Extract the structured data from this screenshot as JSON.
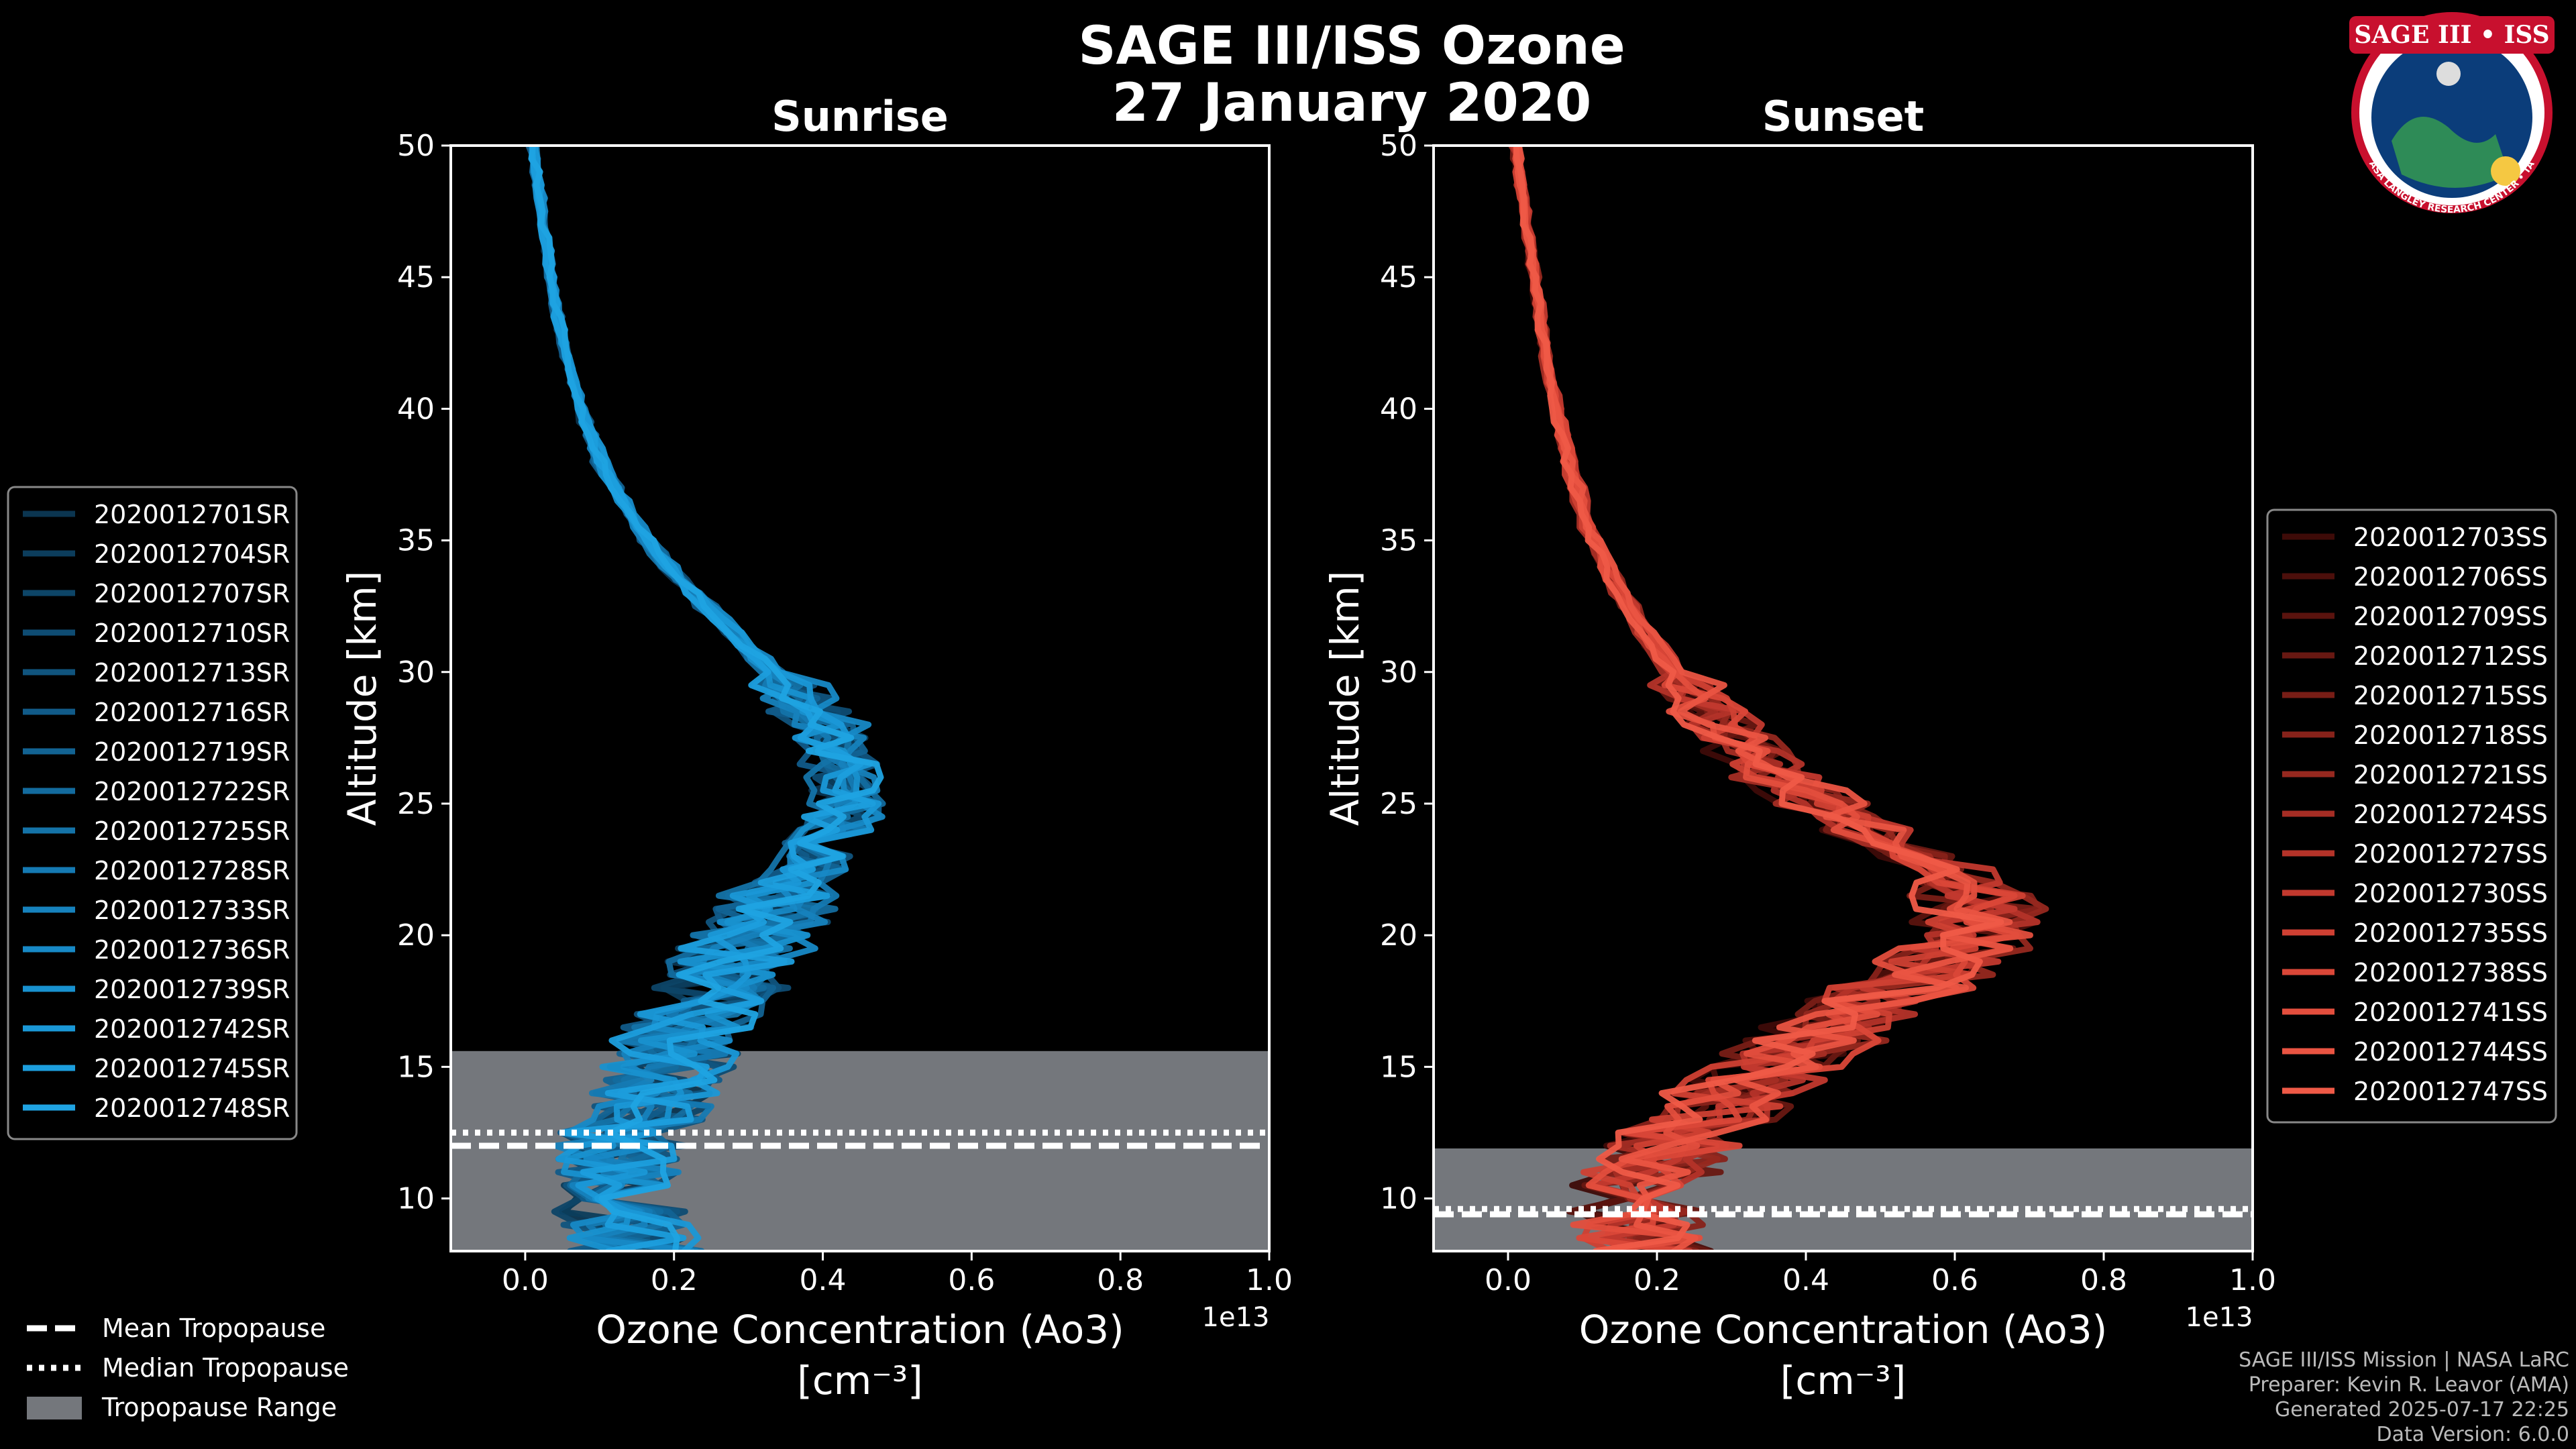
{
  "title": "SAGE III/ISS Ozone",
  "date": "27 January 2020",
  "logo": {
    "text": "SAGE III • ISS",
    "ring_text": "BALL • NASA LANGLEY RESEARCH CENTER • TAS-I • ESA",
    "colors": {
      "ring": "#c8102e",
      "inner": "#0b3d7a"
    }
  },
  "colors": {
    "sunrise": "#1e9fdc",
    "sunset": "#ef5a47",
    "tropopause_band": "#74777c",
    "background": "#000000"
  },
  "chart_data": [
    {
      "type": "line",
      "title": "Sunrise",
      "xlabel": "Ozone Concentration (Ao3)",
      "xunit": "[cm⁻³]",
      "ylabel": "Altitude [km]",
      "xlim": [
        -0.1,
        1.0
      ],
      "ylim": [
        8,
        50
      ],
      "x_ticks": [
        "0.0",
        "0.2",
        "0.4",
        "0.6",
        "0.8",
        "1.0"
      ],
      "y_ticks": [
        "10",
        "15",
        "20",
        "25",
        "30",
        "35",
        "40",
        "45",
        "50"
      ],
      "x_scale_label": "1e13",
      "tropopause": {
        "mean": 12.0,
        "median": 12.5,
        "range": [
          8,
          15.6
        ]
      },
      "base_profile": {
        "altitude": [
          8,
          10,
          12,
          14,
          16,
          18,
          20,
          22,
          24,
          25,
          26,
          27,
          28,
          30,
          32,
          34,
          36,
          38,
          40,
          42,
          44,
          46,
          48,
          50
        ],
        "ozone": [
          0.15,
          0.12,
          0.13,
          0.17,
          0.21,
          0.26,
          0.3,
          0.36,
          0.42,
          0.44,
          0.43,
          0.42,
          0.4,
          0.33,
          0.26,
          0.19,
          0.14,
          0.1,
          0.075,
          0.055,
          0.04,
          0.03,
          0.02,
          0.01
        ]
      },
      "series": [
        {
          "name": "2020012701SR",
          "shift": -0.02,
          "color": "#0b3550"
        },
        {
          "name": "2020012704SR",
          "shift": 0.01,
          "color": "#0c3d5c"
        },
        {
          "name": "2020012707SR",
          "shift": -0.01,
          "color": "#0d4567"
        },
        {
          "name": "2020012710SR",
          "shift": 0.02,
          "color": "#0e4c73"
        },
        {
          "name": "2020012713SR",
          "shift": 0.0,
          "color": "#10547e"
        },
        {
          "name": "2020012716SR",
          "shift": -0.03,
          "color": "#115b89"
        },
        {
          "name": "2020012719SR",
          "shift": 0.03,
          "color": "#126393"
        },
        {
          "name": "2020012722SR",
          "shift": 0.01,
          "color": "#136b9e"
        },
        {
          "name": "2020012725SR",
          "shift": -0.02,
          "color": "#1473a8"
        },
        {
          "name": "2020012728SR",
          "shift": 0.02,
          "color": "#157ab3"
        },
        {
          "name": "2020012733SR",
          "shift": 0.0,
          "color": "#1682bd"
        },
        {
          "name": "2020012736SR",
          "shift": 0.04,
          "color": "#1789c6"
        },
        {
          "name": "2020012739SR",
          "shift": -0.01,
          "color": "#1891cf"
        },
        {
          "name": "2020012742SR",
          "shift": 0.03,
          "color": "#1a98d7"
        },
        {
          "name": "2020012745SR",
          "shift": -0.02,
          "color": "#1c9edd"
        },
        {
          "name": "2020012748SR",
          "shift": 0.01,
          "color": "#1fa3e2"
        }
      ]
    },
    {
      "type": "line",
      "title": "Sunset",
      "xlabel": "Ozone Concentration (Ao3)",
      "xunit": "[cm⁻³]",
      "ylabel": "Altitude [km]",
      "xlim": [
        -0.1,
        1.0
      ],
      "ylim": [
        8,
        50
      ],
      "x_ticks": [
        "0.0",
        "0.2",
        "0.4",
        "0.6",
        "0.8",
        "1.0"
      ],
      "y_ticks": [
        "10",
        "15",
        "20",
        "25",
        "30",
        "35",
        "40",
        "45",
        "50"
      ],
      "x_scale_label": "1e13",
      "tropopause": {
        "mean": 9.4,
        "median": 9.6,
        "range": [
          8,
          11.9
        ]
      },
      "base_profile": {
        "altitude": [
          8,
          9,
          10,
          12,
          14,
          16,
          18,
          20,
          21,
          22,
          24,
          26,
          28,
          30,
          32,
          34,
          36,
          38,
          40,
          42,
          44,
          46,
          48,
          50
        ],
        "ozone": [
          0.18,
          0.17,
          0.16,
          0.22,
          0.3,
          0.4,
          0.52,
          0.62,
          0.64,
          0.6,
          0.48,
          0.36,
          0.28,
          0.22,
          0.17,
          0.13,
          0.1,
          0.08,
          0.065,
          0.05,
          0.04,
          0.03,
          0.02,
          0.01
        ]
      },
      "series": [
        {
          "name": "2020012703SS",
          "shift": -0.03,
          "color": "#3e0b08"
        },
        {
          "name": "2020012706SS",
          "shift": 0.02,
          "color": "#4c0f0b"
        },
        {
          "name": "2020012709SS",
          "shift": 0.0,
          "color": "#5a130e"
        },
        {
          "name": "2020012712SS",
          "shift": 0.04,
          "color": "#681812"
        },
        {
          "name": "2020012715SS",
          "shift": -0.02,
          "color": "#781d16"
        },
        {
          "name": "2020012718SS",
          "shift": 0.01,
          "color": "#87221a"
        },
        {
          "name": "2020012721SS",
          "shift": 0.05,
          "color": "#96281f"
        },
        {
          "name": "2020012724SS",
          "shift": -0.04,
          "color": "#a52d24"
        },
        {
          "name": "2020012727SS",
          "shift": 0.02,
          "color": "#b43329"
        },
        {
          "name": "2020012730SS",
          "shift": 0.06,
          "color": "#c2392e"
        },
        {
          "name": "2020012735SS",
          "shift": -0.01,
          "color": "#cf4033"
        },
        {
          "name": "2020012738SS",
          "shift": 0.03,
          "color": "#da4738"
        },
        {
          "name": "2020012741SS",
          "shift": 0.0,
          "color": "#e34e3d"
        },
        {
          "name": "2020012744SS",
          "shift": 0.04,
          "color": "#ea5442"
        },
        {
          "name": "2020012747SS",
          "shift": -0.02,
          "color": "#ef5a47"
        }
      ]
    }
  ],
  "legend_common": [
    {
      "label": "Mean Tropopause",
      "style": "dashed"
    },
    {
      "label": "Median Tropopause",
      "style": "dotted"
    },
    {
      "label": "Tropopause Range",
      "style": "patch"
    }
  ],
  "credits": [
    "SAGE III/ISS Mission | NASA LaRC",
    "Preparer: Kevin R. Leavor (AMA)",
    "Generated 2025-07-17 22:25",
    "Data Version: 6.0.0"
  ]
}
